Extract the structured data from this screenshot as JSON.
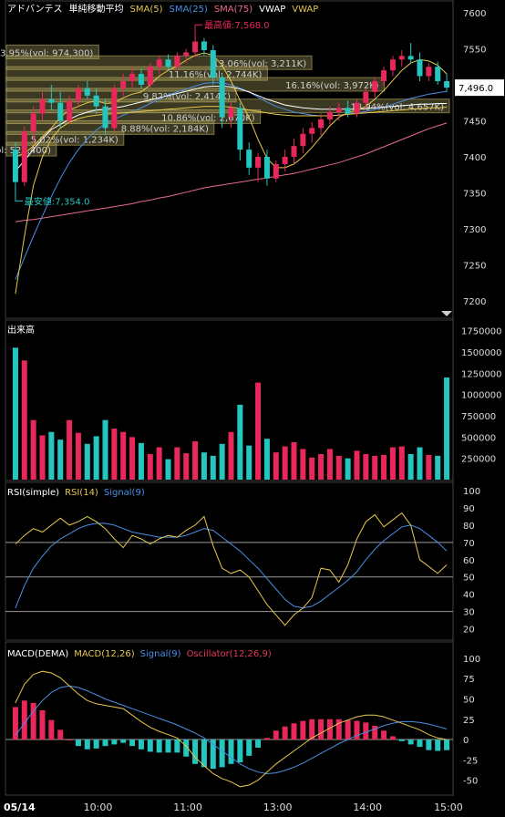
{
  "legend_price": [
    {
      "text": "アドバンテス",
      "color": "#ffffff"
    },
    {
      "text": "単純移動平均",
      "color": "#ffffff"
    },
    {
      "text": "SMA(5)",
      "color": "#e6c84a"
    },
    {
      "text": "SMA(25)",
      "color": "#4a8fe6"
    },
    {
      "text": "SMA(75)",
      "color": "#e66a8a"
    },
    {
      "text": "VWAP",
      "color": "#ffffff"
    },
    {
      "text": "VWAP",
      "color": "#e6c84a"
    }
  ],
  "legend_rsi": [
    {
      "text": "RSI(simple)",
      "color": "#ffffff"
    },
    {
      "text": "RSI(14)",
      "color": "#e6c84a"
    },
    {
      "text": "Signal(9)",
      "color": "#4a8fe6"
    }
  ],
  "legend_macd": [
    {
      "text": "MACD(DEMA)",
      "color": "#ffffff"
    },
    {
      "text": "MACD(12,26)",
      "color": "#e6c84a"
    },
    {
      "text": "Signal(9)",
      "color": "#4a8fe6"
    },
    {
      "text": "Oscillator(12,26,9)",
      "color": "#e63a5a"
    }
  ],
  "volume_title": "出来高",
  "last_price_label": "7,496.0",
  "high_label": "最高値:7,568.0",
  "low_label": "最安値:7,354.0",
  "x_labels": [
    "05/14",
    "10:00",
    "11:00",
    "13:00",
    "14:00",
    "15:00"
  ],
  "colors": {
    "up": "#e8285a",
    "down": "#26c6c0",
    "grid": "#555555",
    "bg": "#000000",
    "text": "#dddddd"
  },
  "chart_data": [
    {
      "type": "candlestick",
      "name": "price",
      "ylim": [
        7185,
        7610
      ],
      "yticks": [
        7200,
        7250,
        7300,
        7350,
        7400,
        7450,
        7500,
        7550,
        7600
      ],
      "high": 7568.0,
      "low": 7354.0,
      "last": 7496.0,
      "candles": [
        [
          7410,
          7420,
          7355,
          7365
        ],
        [
          7365,
          7442,
          7360,
          7435
        ],
        [
          7435,
          7470,
          7420,
          7460
        ],
        [
          7460,
          7490,
          7450,
          7480
        ],
        [
          7480,
          7500,
          7465,
          7475
        ],
        [
          7475,
          7490,
          7440,
          7450
        ],
        [
          7450,
          7485,
          7445,
          7478
        ],
        [
          7478,
          7500,
          7470,
          7495
        ],
        [
          7495,
          7505,
          7480,
          7485
        ],
        [
          7485,
          7495,
          7460,
          7470
        ],
        [
          7470,
          7480,
          7430,
          7440
        ],
        [
          7440,
          7500,
          7435,
          7495
        ],
        [
          7495,
          7515,
          7485,
          7505
        ],
        [
          7505,
          7525,
          7495,
          7515
        ],
        [
          7515,
          7522,
          7495,
          7500
        ],
        [
          7500,
          7530,
          7495,
          7525
        ],
        [
          7525,
          7540,
          7515,
          7535
        ],
        [
          7535,
          7542,
          7520,
          7525
        ],
        [
          7525,
          7545,
          7520,
          7540
        ],
        [
          7540,
          7550,
          7530,
          7545
        ],
        [
          7545,
          7568,
          7538,
          7560
        ],
        [
          7560,
          7565,
          7540,
          7548
        ],
        [
          7548,
          7555,
          7500,
          7510
        ],
        [
          7510,
          7515,
          7440,
          7455
        ],
        [
          7455,
          7475,
          7440,
          7468
        ],
        [
          7468,
          7475,
          7395,
          7410
        ],
        [
          7410,
          7420,
          7375,
          7385
        ],
        [
          7385,
          7405,
          7365,
          7400
        ],
        [
          7400,
          7410,
          7360,
          7370
        ],
        [
          7370,
          7395,
          7365,
          7390
        ],
        [
          7390,
          7410,
          7380,
          7400
        ],
        [
          7400,
          7425,
          7390,
          7415
        ],
        [
          7415,
          7440,
          7405,
          7432
        ],
        [
          7432,
          7448,
          7420,
          7440
        ],
        [
          7440,
          7460,
          7430,
          7452
        ],
        [
          7452,
          7470,
          7445,
          7462
        ],
        [
          7462,
          7475,
          7450,
          7468
        ],
        [
          7468,
          7478,
          7455,
          7460
        ],
        [
          7460,
          7480,
          7455,
          7475
        ],
        [
          7475,
          7495,
          7468,
          7490
        ],
        [
          7490,
          7510,
          7482,
          7505
        ],
        [
          7505,
          7525,
          7498,
          7520
        ],
        [
          7520,
          7540,
          7512,
          7535
        ],
        [
          7535,
          7548,
          7525,
          7540
        ],
        [
          7540,
          7558,
          7530,
          7535
        ],
        [
          7535,
          7545,
          7505,
          7512
        ],
        [
          7512,
          7530,
          7505,
          7525
        ],
        [
          7525,
          7532,
          7500,
          7505
        ],
        [
          7505,
          7515,
          7490,
          7496
        ]
      ],
      "sma5": [
        7400,
        7405,
        7415,
        7428,
        7440,
        7455,
        7465,
        7470,
        7475,
        7478,
        7474,
        7475,
        7482,
        7487,
        7490,
        7500,
        7512,
        7520,
        7526,
        7534,
        7541,
        7544,
        7541,
        7527,
        7505,
        7478,
        7455,
        7424,
        7398,
        7385,
        7385,
        7390,
        7400,
        7413,
        7428,
        7443,
        7455,
        7461,
        7465,
        7470,
        7480,
        7492,
        7506,
        7520,
        7530,
        7535,
        7533,
        7527,
        7515
      ],
      "sma25": [
        7230,
        7260,
        7290,
        7318,
        7345,
        7370,
        7392,
        7410,
        7425,
        7437,
        7446,
        7452,
        7458,
        7463,
        7468,
        7474,
        7480,
        7486,
        7490,
        7494,
        7498,
        7502,
        7503,
        7503,
        7500,
        7495,
        7490,
        7483,
        7476,
        7470,
        7466,
        7462,
        7460,
        7458,
        7457,
        7457,
        7458,
        7459,
        7461,
        7463,
        7466,
        7469,
        7473,
        7477,
        7481,
        7484,
        7487,
        7489,
        7491
      ],
      "sma75": [
        7310,
        7312,
        7313,
        7315,
        7317,
        7319,
        7321,
        7323,
        7325,
        7327,
        7329,
        7331,
        7333,
        7335,
        7338,
        7340,
        7343,
        7345,
        7348,
        7351,
        7354,
        7357,
        7359,
        7361,
        7363,
        7365,
        7367,
        7369,
        7371,
        7373,
        7375,
        7377,
        7380,
        7383,
        7386,
        7389,
        7392,
        7396,
        7400,
        7404,
        7409,
        7414,
        7419,
        7424,
        7429,
        7434,
        7439,
        7443,
        7447
      ],
      "vwap_white": [
        7380,
        7395,
        7410,
        7425,
        7438,
        7445,
        7452,
        7458,
        7462,
        7465,
        7466,
        7468,
        7470,
        7473,
        7476,
        7479,
        7482,
        7485,
        7488,
        7491,
        7494,
        7497,
        7498,
        7498,
        7497,
        7494,
        7490,
        7485,
        7480,
        7476,
        7472,
        7470,
        7468,
        7467,
        7466,
        7466,
        7466,
        7466,
        7466,
        7467,
        7468,
        7469,
        7470,
        7471,
        7472,
        7473,
        7473,
        7474,
        7474
      ],
      "vwap_yellow": [
        7210,
        7290,
        7360,
        7400,
        7425,
        7440,
        7448,
        7453,
        7456,
        7458,
        7459,
        7460,
        7461,
        7462,
        7463,
        7464,
        7465,
        7466,
        7467,
        7468,
        7469,
        7470,
        7470,
        7470,
        7469,
        7467,
        7465,
        7463,
        7461,
        7459,
        7458,
        7457,
        7457,
        7457,
        7457,
        7457,
        7458,
        7459,
        7460,
        7461,
        7462,
        7463,
        7464,
        7465,
        7466,
        7467,
        7468,
        7468,
        7469
      ],
      "volume_profile": [
        {
          "price": 7545,
          "percent": "3.95%",
          "vol": "974,300",
          "label": "3.95%(vol: 974,300)"
        },
        {
          "price": 7530,
          "percent": "13.06%",
          "vol": "3,211K",
          "label": "13.06%(vol: 3,211K)"
        },
        {
          "price": 7515,
          "percent": "11.16%",
          "vol": "2,744K",
          "label": "11.16%(vol: 2,744K)"
        },
        {
          "price": 7500,
          "percent": "16.16%",
          "vol": "3,972K",
          "label": "16.16%(vol: 3,972K)"
        },
        {
          "price": 7485,
          "percent": "9.82%",
          "vol": "2,414K",
          "label": "9.82%(vol: 2,414K)"
        },
        {
          "price": 7470,
          "percent": "18.94%",
          "vol": "4,657K",
          "label": "18.94%(vol: 4,657K)"
        },
        {
          "price": 7455,
          "percent": "10.86%",
          "vol": "2,670K",
          "label": "10.86%(vol: 2,670K)"
        },
        {
          "price": 7440,
          "percent": "8.88%",
          "vol": "2,184K",
          "label": "8.88%(vol: 2,184K)"
        },
        {
          "price": 7425,
          "percent": "5.02%",
          "vol": "1,234K",
          "label": "5.02%(vol: 1,234K)"
        },
        {
          "price": 7410,
          "percent": "2.14%",
          "vol": "525,400",
          "label": "2.14%(vol: 525,400)"
        }
      ]
    },
    {
      "type": "bar",
      "name": "volume",
      "ylim": [
        0,
        1800000
      ],
      "yticks": [
        250000,
        500000,
        750000,
        1000000,
        1250000,
        1500000,
        1750000
      ],
      "ytick_labels": [
        "250000",
        "500000",
        "750000",
        "1000000",
        "1250000",
        "1500000",
        "1750000"
      ],
      "values": [
        1550000,
        1400000,
        700000,
        520000,
        560000,
        470000,
        700000,
        550000,
        420000,
        510000,
        700000,
        600000,
        560000,
        500000,
        430000,
        300000,
        380000,
        240000,
        380000,
        310000,
        450000,
        320000,
        280000,
        420000,
        560000,
        880000,
        400000,
        1140000,
        480000,
        320000,
        390000,
        440000,
        360000,
        260000,
        300000,
        360000,
        280000,
        250000,
        340000,
        300000,
        280000,
        290000,
        380000,
        390000,
        300000,
        380000,
        290000,
        280000,
        1200000
      ]
    },
    {
      "type": "line",
      "name": "rsi",
      "ylim": [
        15,
        100
      ],
      "yticks": [
        20,
        30,
        40,
        50,
        60,
        70,
        80,
        90,
        100
      ],
      "hlines": [
        30,
        50,
        70
      ],
      "rsi": [
        69,
        74,
        78,
        76,
        80,
        84,
        80,
        82,
        85,
        82,
        78,
        72,
        67,
        74,
        72,
        69,
        72,
        74,
        73,
        77,
        80,
        85,
        68,
        55,
        52,
        54,
        50,
        42,
        34,
        28,
        22,
        28,
        32,
        38,
        55,
        54,
        47,
        57,
        72,
        82,
        86,
        79,
        83,
        87,
        80,
        60,
        56,
        52,
        57
      ],
      "signal": [
        32,
        45,
        55,
        62,
        68,
        72,
        75,
        78,
        80,
        81,
        81,
        80,
        78,
        76,
        75,
        74,
        73,
        73,
        73,
        74,
        76,
        78,
        77,
        73,
        69,
        65,
        60,
        55,
        49,
        43,
        37,
        33,
        32,
        33,
        36,
        40,
        44,
        48,
        53,
        60,
        66,
        71,
        75,
        79,
        80,
        78,
        74,
        70,
        65
      ]
    },
    {
      "type": "bar",
      "name": "macd",
      "ylim": [
        -65,
        110
      ],
      "yticks": [
        -50,
        -25,
        0,
        25,
        50,
        75,
        100
      ],
      "macd": [
        45,
        68,
        80,
        84,
        82,
        76,
        66,
        56,
        48,
        44,
        42,
        40,
        38,
        30,
        22,
        15,
        10,
        6,
        2,
        -8,
        -22,
        -32,
        -42,
        -48,
        -52,
        -58,
        -56,
        -50,
        -40,
        -30,
        -22,
        -14,
        -6,
        2,
        8,
        14,
        20,
        24,
        28,
        30,
        30,
        28,
        24,
        20,
        16,
        12,
        6,
        2,
        0
      ],
      "signal": [
        5,
        20,
        35,
        48,
        58,
        64,
        66,
        64,
        60,
        55,
        50,
        46,
        42,
        38,
        34,
        30,
        26,
        22,
        18,
        13,
        8,
        2,
        -6,
        -14,
        -22,
        -30,
        -36,
        -40,
        -42,
        -41,
        -38,
        -34,
        -29,
        -23,
        -17,
        -11,
        -5,
        0,
        5,
        9,
        13,
        17,
        20,
        22,
        22,
        21,
        19,
        16,
        13
      ],
      "oscillator": [
        40,
        48,
        45,
        36,
        24,
        12,
        0,
        -8,
        -12,
        -11,
        -8,
        -6,
        -4,
        -8,
        -12,
        -15,
        -16,
        -16,
        -16,
        -21,
        -30,
        -34,
        -36,
        -34,
        -30,
        -28,
        -20,
        -10,
        2,
        11,
        16,
        20,
        23,
        25,
        25,
        25,
        25,
        24,
        23,
        21,
        17,
        11,
        4,
        -2,
        -6,
        -9,
        -13,
        -14,
        -13
      ]
    }
  ]
}
